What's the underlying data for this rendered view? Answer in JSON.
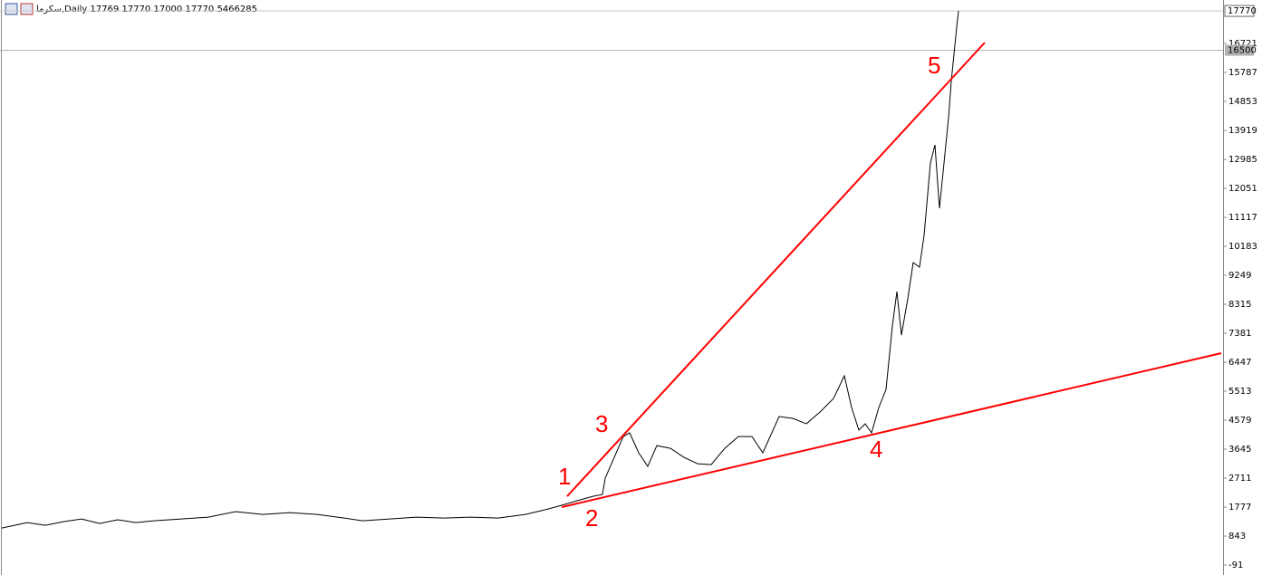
{
  "chart_data": {
    "type": "line",
    "header": "سکرما,Daily  17769 17770 17000 17770  5466285",
    "series": [
      {
        "color": "#000000",
        "x": [
          2,
          30,
          50,
          70,
          90,
          110,
          130,
          150,
          170,
          200,
          230,
          260,
          290,
          320,
          350,
          380,
          400,
          430,
          460,
          490,
          520,
          550,
          580,
          605,
          620,
          640,
          655,
          665,
          668,
          678,
          688,
          695,
          705,
          715,
          725,
          740,
          755,
          770,
          785,
          800,
          815,
          830,
          842,
          860,
          875,
          890,
          905,
          920,
          932,
          940,
          948,
          955,
          962,
          970,
          978,
          985,
          990,
          995,
          1002,
          1008,
          1015,
          1020,
          1027,
          1032,
          1037,
          1042,
          1047,
          1050,
          1053,
          1056,
          1058
        ],
        "values": [
          1104,
          1279,
          1191,
          1308,
          1396,
          1250,
          1367,
          1279,
          1337,
          1396,
          1454,
          1630,
          1542,
          1600,
          1542,
          1425,
          1337,
          1396,
          1454,
          1425,
          1454,
          1425,
          1542,
          1717,
          1834,
          2009,
          2126,
          2184,
          2709,
          3380,
          4051,
          4169,
          3526,
          3088,
          3760,
          3672,
          3380,
          3176,
          3147,
          3672,
          4051,
          4051,
          3526,
          4695,
          4636,
          4461,
          4840,
          5278,
          6008,
          4986,
          4257,
          4461,
          4169,
          4986,
          5570,
          7613,
          8723,
          7321,
          8490,
          9657,
          9511,
          10532,
          12868,
          13452,
          11408,
          12868,
          14327,
          15495,
          16370,
          17246,
          17770
        ]
      }
    ],
    "trendlines": [
      {
        "color": "#ff0000",
        "x": [
          626,
          1087
        ],
        "y": [
          2126,
          16750
        ]
      },
      {
        "color": "#ff0000",
        "x": [
          620,
          1348
        ],
        "y": [
          1776,
          6738
        ]
      }
    ],
    "annotations": [
      "1",
      "2",
      "3",
      "4",
      "5"
    ],
    "xlim": [
      0,
      1350
    ],
    "ylim": [
      -412,
      18122
    ],
    "yticks": [
      16721,
      15787,
      14853,
      13919,
      12985,
      12051,
      11117,
      10183,
      9249,
      8315,
      7381,
      6447,
      5513,
      4579,
      3645,
      2711,
      1777,
      843,
      -91
    ],
    "last_price": 17770,
    "level": 16500
  }
}
